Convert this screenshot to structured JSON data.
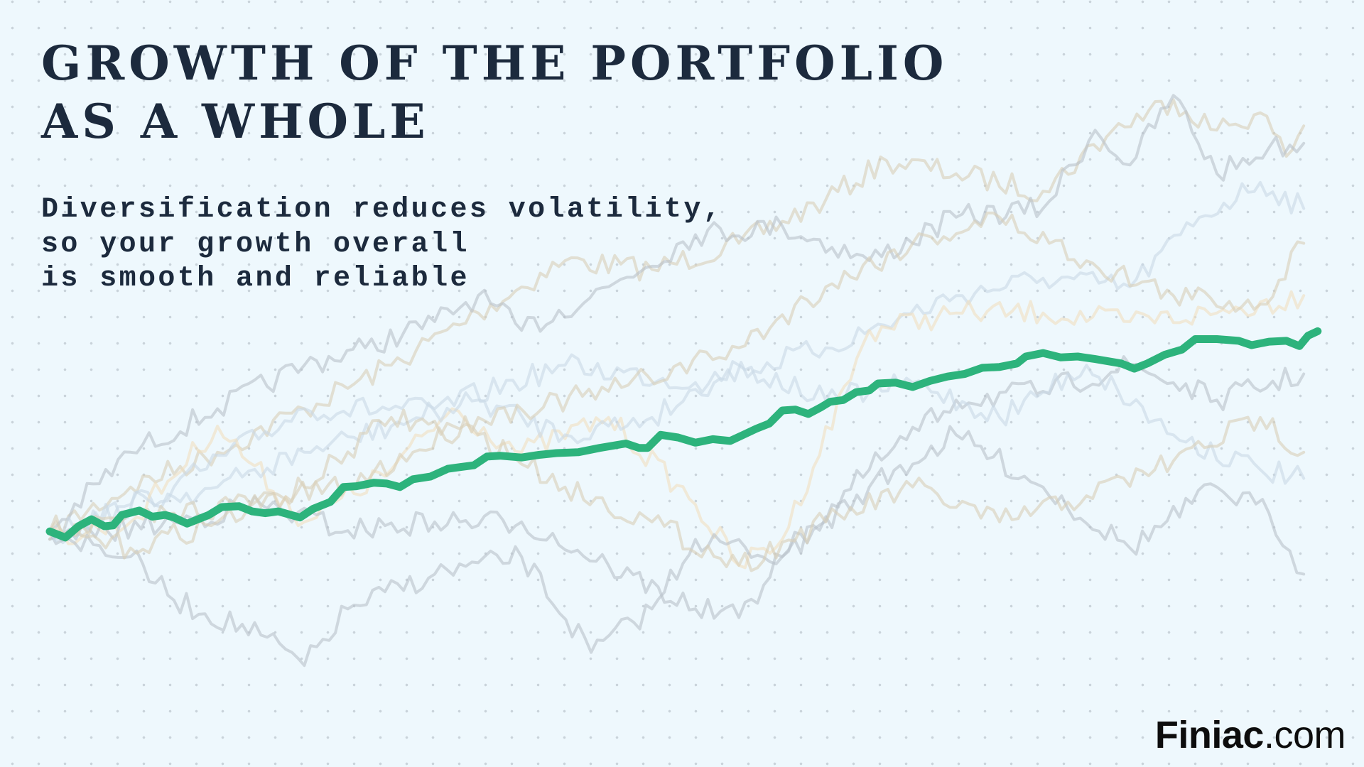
{
  "title": [
    "GROWTH OF THE PORTFOLIO",
    "AS A WHOLE"
  ],
  "subtitle": [
    "Diversification reduces volatility,",
    "so your growth overall",
    "is smooth and reliable"
  ],
  "logo": {
    "brand": "Finiac",
    "suffix": ".com"
  },
  "colors": {
    "background": "#eef8fd",
    "portfolio": "#2db37c",
    "grid_dots": "#c9d3da",
    "text": "#1c2a3d"
  },
  "chart_data": {
    "type": "line",
    "title": "GROWTH OF THE PORTFOLIO AS A WHOLE",
    "xlabel": "",
    "ylabel": "",
    "axes_visible": false,
    "grid": "dotted",
    "xlim": [
      0,
      1460
    ],
    "ylim": [
      0,
      700
    ],
    "series": [
      {
        "role": "portfolio",
        "color": "#2db37c",
        "emphasis": true,
        "points": [
          [
            0,
            189
          ],
          [
            18,
            182
          ],
          [
            33,
            195
          ],
          [
            48,
            203
          ],
          [
            63,
            195
          ],
          [
            73,
            196
          ],
          [
            83,
            208
          ],
          [
            103,
            213
          ],
          [
            118,
            206
          ],
          [
            133,
            208
          ],
          [
            143,
            205
          ],
          [
            158,
            198
          ],
          [
            183,
            208
          ],
          [
            198,
            217
          ],
          [
            218,
            218
          ],
          [
            233,
            212
          ],
          [
            248,
            210
          ],
          [
            263,
            212
          ],
          [
            288,
            205
          ],
          [
            303,
            215
          ],
          [
            323,
            223
          ],
          [
            338,
            240
          ],
          [
            353,
            241
          ],
          [
            373,
            245
          ],
          [
            388,
            244
          ],
          [
            403,
            240
          ],
          [
            418,
            249
          ],
          [
            438,
            252
          ],
          [
            458,
            261
          ],
          [
            473,
            263
          ],
          [
            488,
            265
          ],
          [
            503,
            275
          ],
          [
            518,
            276
          ],
          [
            543,
            274
          ],
          [
            563,
            277
          ],
          [
            583,
            279
          ],
          [
            608,
            280
          ],
          [
            633,
            285
          ],
          [
            663,
            290
          ],
          [
            678,
            285
          ],
          [
            688,
            285
          ],
          [
            703,
            300
          ],
          [
            723,
            297
          ],
          [
            743,
            291
          ],
          [
            763,
            295
          ],
          [
            783,
            293
          ],
          [
            798,
            300
          ],
          [
            813,
            307
          ],
          [
            828,
            313
          ],
          [
            843,
            328
          ],
          [
            858,
            329
          ],
          [
            873,
            324
          ],
          [
            888,
            332
          ],
          [
            898,
            338
          ],
          [
            913,
            340
          ],
          [
            928,
            349
          ],
          [
            943,
            351
          ],
          [
            953,
            359
          ],
          [
            973,
            360
          ],
          [
            993,
            355
          ],
          [
            1013,
            362
          ],
          [
            1033,
            367
          ],
          [
            1053,
            370
          ],
          [
            1073,
            377
          ],
          [
            1093,
            378
          ],
          [
            1113,
            382
          ],
          [
            1123,
            390
          ],
          [
            1143,
            394
          ],
          [
            1163,
            389
          ],
          [
            1183,
            390
          ],
          [
            1203,
            387
          ],
          [
            1233,
            382
          ],
          [
            1248,
            376
          ],
          [
            1263,
            382
          ],
          [
            1283,
            392
          ],
          [
            1303,
            398
          ],
          [
            1318,
            410
          ],
          [
            1343,
            410
          ],
          [
            1368,
            408
          ],
          [
            1383,
            403
          ],
          [
            1403,
            407
          ],
          [
            1423,
            408
          ],
          [
            1438,
            402
          ],
          [
            1448,
            414
          ],
          [
            1459,
            419
          ]
        ]
      },
      {
        "role": "asset",
        "color": "#d8cfb8",
        "points": [
          [
            0,
            189
          ],
          [
            93,
            240
          ],
          [
            193,
            280
          ],
          [
            293,
            330
          ],
          [
            393,
            380
          ],
          [
            493,
            440
          ],
          [
            593,
            500
          ],
          [
            693,
            490
          ],
          [
            793,
            520
          ],
          [
            893,
            570
          ],
          [
            963,
            615
          ],
          [
            1043,
            600
          ],
          [
            1143,
            580
          ],
          [
            1223,
            650
          ],
          [
            1293,
            685
          ],
          [
            1343,
            650
          ],
          [
            1393,
            670
          ],
          [
            1423,
            620
          ],
          [
            1443,
            655
          ]
        ]
      },
      {
        "role": "asset",
        "color": "#b9c2ca",
        "points": [
          [
            0,
            189
          ],
          [
            93,
            280
          ],
          [
            193,
            330
          ],
          [
            293,
            380
          ],
          [
            363,
            400
          ],
          [
            443,
            430
          ],
          [
            493,
            460
          ],
          [
            543,
            420
          ],
          [
            643,
            470
          ],
          [
            743,
            530
          ],
          [
            843,
            540
          ],
          [
            943,
            500
          ],
          [
            1043,
            550
          ],
          [
            1143,
            560
          ],
          [
            1203,
            650
          ],
          [
            1243,
            610
          ],
          [
            1293,
            690
          ],
          [
            1343,
            600
          ],
          [
            1403,
            630
          ],
          [
            1443,
            635
          ]
        ]
      },
      {
        "role": "asset",
        "color": "#c9d8e6",
        "points": [
          [
            0,
            180
          ],
          [
            143,
            240
          ],
          [
            293,
            330
          ],
          [
            443,
            330
          ],
          [
            593,
            380
          ],
          [
            743,
            360
          ],
          [
            893,
            400
          ],
          [
            1043,
            460
          ],
          [
            1143,
            480
          ],
          [
            1243,
            470
          ],
          [
            1323,
            550
          ],
          [
            1393,
            590
          ],
          [
            1443,
            560
          ]
        ]
      },
      {
        "role": "asset",
        "color": "#f2dfc0",
        "points": [
          [
            0,
            180
          ],
          [
            93,
            200
          ],
          [
            193,
            310
          ],
          [
            293,
            200
          ],
          [
            393,
            260
          ],
          [
            463,
            330
          ],
          [
            543,
            280
          ],
          [
            643,
            320
          ],
          [
            743,
            220
          ],
          [
            793,
            150
          ],
          [
            843,
            180
          ],
          [
            943,
            420
          ],
          [
            1043,
            440
          ],
          [
            1143,
            440
          ],
          [
            1243,
            430
          ],
          [
            1343,
            440
          ],
          [
            1443,
            460
          ]
        ]
      },
      {
        "role": "asset",
        "color": "#b9c2ca",
        "points": [
          [
            0,
            189
          ],
          [
            93,
            160
          ],
          [
            143,
            110
          ],
          [
            243,
            70
          ],
          [
            293,
            35
          ],
          [
            343,
            100
          ],
          [
            443,
            140
          ],
          [
            543,
            160
          ],
          [
            623,
            50
          ],
          [
            693,
            100
          ],
          [
            743,
            180
          ],
          [
            843,
            160
          ],
          [
            943,
            260
          ],
          [
            1043,
            340
          ],
          [
            1143,
            350
          ],
          [
            1243,
            380
          ],
          [
            1343,
            340
          ],
          [
            1443,
            370
          ]
        ]
      },
      {
        "role": "asset",
        "color": "#b9c2ca",
        "points": [
          [
            0,
            180
          ],
          [
            143,
            200
          ],
          [
            243,
            220
          ],
          [
            343,
            190
          ],
          [
            443,
            200
          ],
          [
            543,
            200
          ],
          [
            643,
            150
          ],
          [
            743,
            100
          ],
          [
            793,
            90
          ],
          [
            843,
            160
          ],
          [
            943,
            240
          ],
          [
            1043,
            300
          ],
          [
            1143,
            240
          ],
          [
            1243,
            170
          ],
          [
            1343,
            240
          ],
          [
            1403,
            210
          ],
          [
            1443,
            140
          ]
        ]
      },
      {
        "role": "asset",
        "color": "#c9d8e6",
        "points": [
          [
            0,
            189
          ],
          [
            93,
            220
          ],
          [
            193,
            240
          ],
          [
            293,
            280
          ],
          [
            393,
            310
          ],
          [
            493,
            340
          ],
          [
            593,
            300
          ],
          [
            693,
            320
          ],
          [
            793,
            380
          ],
          [
            893,
            340
          ],
          [
            993,
            360
          ],
          [
            1093,
            320
          ],
          [
            1193,
            380
          ],
          [
            1293,
            300
          ],
          [
            1393,
            260
          ],
          [
            1443,
            250
          ]
        ]
      },
      {
        "role": "asset",
        "color": "#d8cfb8",
        "points": [
          [
            0,
            189
          ],
          [
            93,
            170
          ],
          [
            193,
            200
          ],
          [
            293,
            240
          ],
          [
            393,
            320
          ],
          [
            493,
            300
          ],
          [
            593,
            240
          ],
          [
            693,
            200
          ],
          [
            793,
            150
          ],
          [
            893,
            200
          ],
          [
            993,
            240
          ],
          [
            1093,
            200
          ],
          [
            1193,
            230
          ],
          [
            1293,
            270
          ],
          [
            1393,
            320
          ],
          [
            1443,
            280
          ]
        ]
      },
      {
        "role": "asset",
        "color": "#d8cfb8",
        "points": [
          [
            0,
            189
          ],
          [
            143,
            210
          ],
          [
            343,
            240
          ],
          [
            493,
            320
          ],
          [
            643,
            350
          ],
          [
            793,
            400
          ],
          [
            893,
            470
          ],
          [
            993,
            520
          ],
          [
            1093,
            550
          ],
          [
            1193,
            500
          ],
          [
            1293,
            460
          ],
          [
            1393,
            450
          ],
          [
            1443,
            520
          ]
        ]
      }
    ]
  }
}
